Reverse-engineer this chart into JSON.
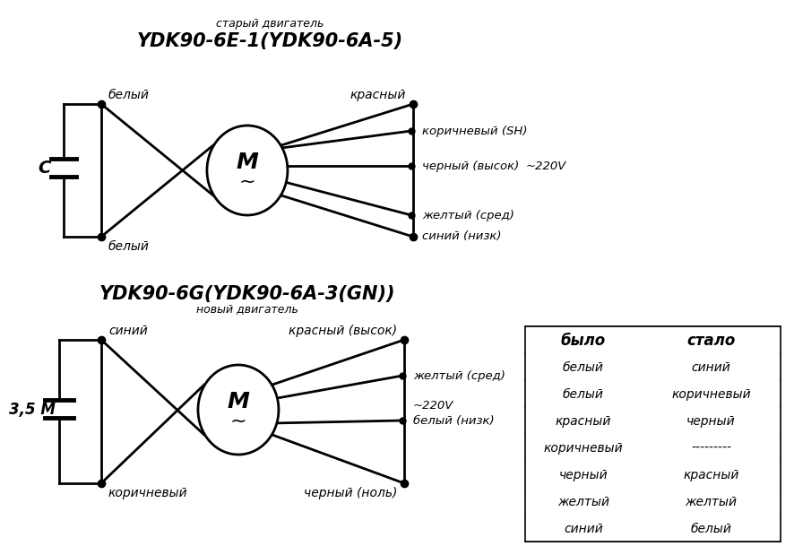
{
  "bg_color": "#ffffff",
  "title1_sub": "старый двигатель",
  "title1": "YDK90-6E-1(YDK90-6A-5)",
  "title2": "YDK90-6G(YDK90-6A-3(GN))",
  "title2_sub": "новый двигатель",
  "voltage": "~220V",
  "capacitor1": "C",
  "capacitor2": "3,5 М",
  "diagram1": {
    "left_top_label": "белый",
    "left_bot_label": "белый",
    "right_top_label": "красный",
    "wire_labels_right": [
      "коричневый (SH)",
      "черный (высок)",
      "желтый (сред)",
      "синий (низк)"
    ]
  },
  "diagram2": {
    "left_top_label": "синий",
    "left_bot_label": "коричневый",
    "right_top_label": "красный (высок)",
    "right_bot_label": "черный (ноль)",
    "wire_labels_right": [
      "желтый (сред)",
      "белый (низк)"
    ]
  },
  "table": {
    "header": [
      "было",
      "стало"
    ],
    "rows": [
      [
        "белый",
        "синий"
      ],
      [
        "белый",
        "коричневый"
      ],
      [
        "красный",
        "черный"
      ],
      [
        "коричневый",
        "---------"
      ],
      [
        "черный",
        "красный"
      ],
      [
        "желтый",
        "желтый"
      ],
      [
        "синий",
        "белый"
      ]
    ]
  }
}
